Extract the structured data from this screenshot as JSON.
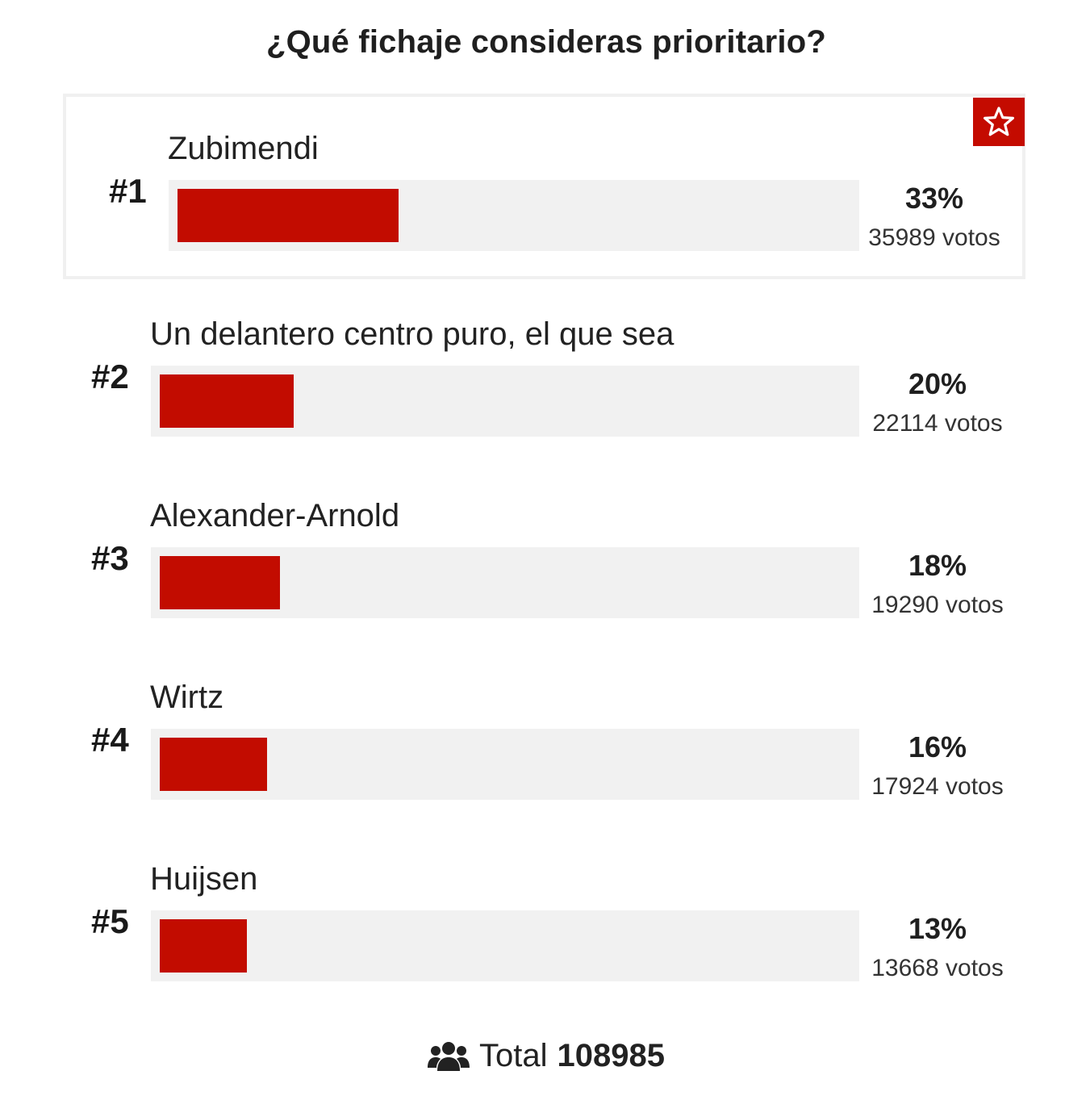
{
  "poll": {
    "title": "¿Qué fichaje consideras prioritario?",
    "votes_suffix": "votos",
    "total_label": "Total",
    "total_votes": "108985",
    "accent_color": "#c20c00",
    "track_color": "#f1f1f1",
    "winner_icon": "star-icon",
    "total_icon": "users-icon"
  },
  "chart_data": {
    "type": "bar",
    "orientation": "horizontal",
    "categories": [
      "Zubimendi",
      "Un delantero centro puro, el que sea",
      "Alexander-Arnold",
      "Wirtz",
      "Huijsen"
    ],
    "ranks": [
      "#1",
      "#2",
      "#3",
      "#4",
      "#5"
    ],
    "values": [
      33,
      20,
      18,
      16,
      13
    ],
    "value_labels": [
      "33%",
      "20%",
      "18%",
      "16%",
      "13%"
    ],
    "votes": [
      35989,
      22114,
      19290,
      17924,
      13668
    ],
    "xlim": [
      0,
      100
    ],
    "grid": false,
    "legend": "none"
  }
}
